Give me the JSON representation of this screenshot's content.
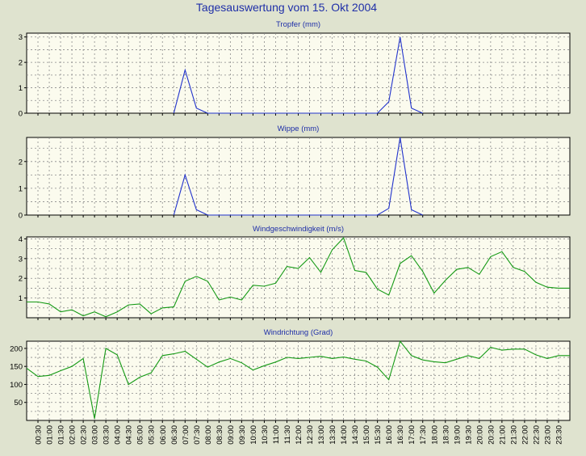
{
  "title": "Tagesauswertung vom 15. Okt 2004",
  "colors": {
    "background": "#dfe3cf",
    "plot_area": "#fbfbee",
    "grid": "#8a8a8a",
    "title_text": "#1f2fa8",
    "rain_line": "#2233cc",
    "wind_line": "#159a15"
  },
  "time_labels": [
    "00:30",
    "01:00",
    "01:30",
    "02:00",
    "02:30",
    "03:00",
    "03:30",
    "04:00",
    "04:30",
    "05:00",
    "05:30",
    "06:00",
    "06:30",
    "07:00",
    "07:30",
    "08:00",
    "08:30",
    "09:00",
    "09:30",
    "10:00",
    "10:30",
    "11:00",
    "11:30",
    "12:00",
    "12:30",
    "13:00",
    "13:30",
    "14:00",
    "14:30",
    "15:00",
    "15:30",
    "16:00",
    "16:30",
    "17:00",
    "17:30",
    "18:00",
    "18:30",
    "19:00",
    "19:30",
    "20:00",
    "20:30",
    "21:00",
    "21:30",
    "22:00",
    "22:30",
    "23:00",
    "23:30"
  ],
  "chart_data": [
    {
      "type": "line",
      "title": "Tropfer (mm)",
      "ylim": [
        0,
        3.15
      ],
      "yticks": [
        0,
        1,
        2,
        3
      ],
      "grid": true,
      "color": "#2233cc",
      "x": [
        "06:30",
        "07:00",
        "07:30",
        "08:00",
        "15:30",
        "16:00",
        "16:30",
        "17:00",
        "17:30"
      ],
      "values": [
        0,
        1.7,
        0.2,
        0,
        0,
        0.45,
        3.0,
        0.2,
        0
      ]
    },
    {
      "type": "line",
      "title": "Wippe (mm)",
      "ylim": [
        0,
        2.9
      ],
      "yticks": [
        0,
        1,
        2
      ],
      "grid": true,
      "color": "#2233cc",
      "x": [
        "06:30",
        "07:00",
        "07:30",
        "08:00",
        "15:30",
        "16:00",
        "16:30",
        "17:00",
        "17:30"
      ],
      "values": [
        0,
        1.5,
        0.2,
        0,
        0,
        0.25,
        2.9,
        0.2,
        0
      ]
    },
    {
      "type": "line",
      "title": "Windgeschwindigkeit (m/s)",
      "ylim": [
        0,
        4.1
      ],
      "yticks": [
        1,
        2,
        3,
        4
      ],
      "grid": true,
      "color": "#159a15",
      "x": [
        "00:00",
        "00:30",
        "01:00",
        "01:30",
        "02:00",
        "02:30",
        "03:00",
        "03:30",
        "04:00",
        "04:30",
        "05:00",
        "05:30",
        "06:00",
        "06:30",
        "07:00",
        "07:30",
        "08:00",
        "08:30",
        "09:00",
        "09:30",
        "10:00",
        "10:30",
        "11:00",
        "11:30",
        "12:00",
        "12:30",
        "13:00",
        "13:30",
        "14:00",
        "14:30",
        "15:00",
        "15:30",
        "16:00",
        "16:30",
        "17:00",
        "17:30",
        "18:00",
        "18:30",
        "19:00",
        "19:30",
        "20:00",
        "20:30",
        "21:00",
        "21:30",
        "22:00",
        "22:30",
        "23:00",
        "23:30",
        "24:00"
      ],
      "values": [
        0.8,
        0.8,
        0.7,
        0.3,
        0.4,
        0.1,
        0.3,
        0.05,
        0.3,
        0.65,
        0.7,
        0.2,
        0.5,
        0.55,
        1.85,
        2.1,
        1.85,
        0.9,
        1.05,
        0.9,
        1.65,
        1.6,
        1.75,
        2.6,
        2.5,
        3.05,
        2.3,
        3.45,
        4.05,
        2.4,
        2.3,
        1.45,
        1.15,
        2.75,
        3.15,
        2.35,
        1.25,
        1.9,
        2.45,
        2.55,
        2.2,
        3.1,
        3.35,
        2.55,
        2.35,
        1.8,
        1.55,
        1.5,
        1.5
      ]
    },
    {
      "type": "line",
      "title": "Windrichtung (Grad)",
      "ylim": [
        0,
        220
      ],
      "yticks": [
        50,
        100,
        150,
        200
      ],
      "grid": true,
      "color": "#159a15",
      "x": [
        "00:00",
        "00:30",
        "01:00",
        "01:30",
        "02:00",
        "02:30",
        "03:00",
        "03:30",
        "04:00",
        "04:30",
        "05:00",
        "05:30",
        "06:00",
        "06:30",
        "07:00",
        "07:30",
        "08:00",
        "08:30",
        "09:00",
        "09:30",
        "10:00",
        "10:30",
        "11:00",
        "11:30",
        "12:00",
        "12:30",
        "13:00",
        "13:30",
        "14:00",
        "14:30",
        "15:00",
        "15:30",
        "16:00",
        "16:30",
        "17:00",
        "17:30",
        "18:00",
        "18:30",
        "19:00",
        "19:30",
        "20:00",
        "20:30",
        "21:00",
        "21:30",
        "22:00",
        "22:30",
        "23:00",
        "23:30",
        "24:00"
      ],
      "values": [
        145,
        122,
        125,
        138,
        150,
        172,
        5,
        200,
        182,
        100,
        120,
        132,
        180,
        185,
        192,
        170,
        148,
        162,
        172,
        160,
        140,
        152,
        162,
        175,
        172,
        175,
        178,
        172,
        176,
        170,
        165,
        148,
        113,
        220,
        180,
        168,
        163,
        160,
        170,
        180,
        172,
        203,
        195,
        198,
        198,
        182,
        172,
        180,
        180
      ]
    }
  ]
}
